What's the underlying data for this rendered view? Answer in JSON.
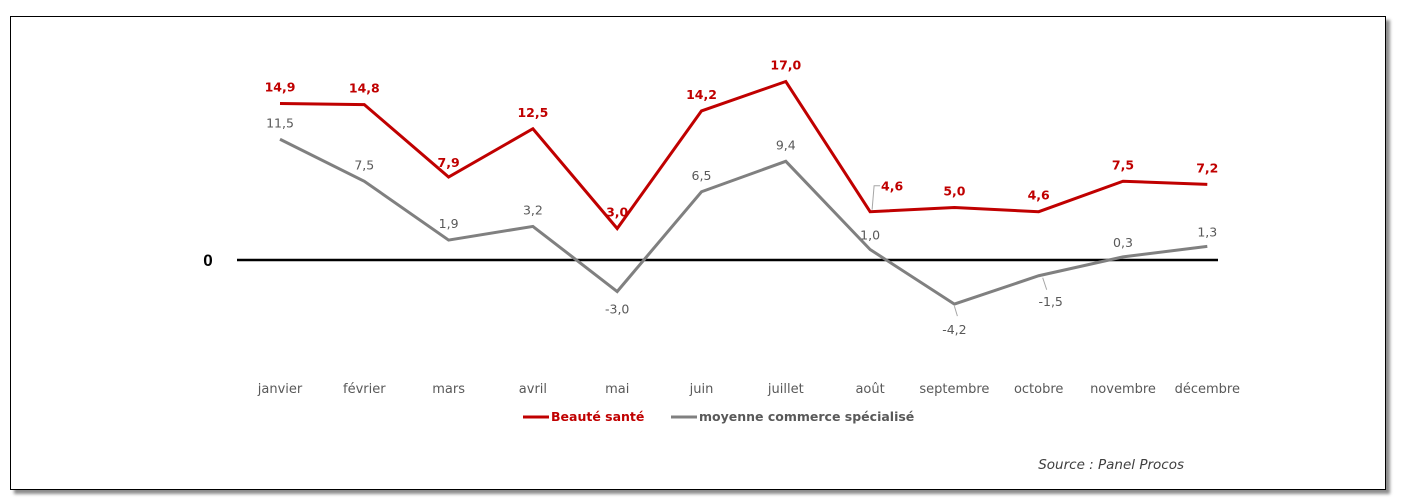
{
  "chart_data": {
    "type": "line",
    "categories": [
      "janvier",
      "février",
      "mars",
      "avril",
      "mai",
      "juin",
      "juillet",
      "août",
      "septembre",
      "octobre",
      "novembre",
      "décembre"
    ],
    "series": [
      {
        "name": "Beauté santé",
        "color": "#c00000",
        "values": [
          14.9,
          14.8,
          7.9,
          12.5,
          3.0,
          14.2,
          17.0,
          4.6,
          5.0,
          4.6,
          7.5,
          7.2
        ],
        "labels": [
          "14,9",
          "14,8",
          "7,9",
          "12,5",
          "3,0",
          "14,2",
          "17,0",
          "4,6",
          "5,0",
          "4,6",
          "7,5",
          "7,2"
        ]
      },
      {
        "name": "moyenne commerce spécialisé",
        "color": "#808080",
        "values": [
          11.5,
          7.5,
          1.9,
          3.2,
          -3.0,
          6.5,
          9.4,
          1.0,
          -4.2,
          -1.5,
          0.3,
          1.3
        ],
        "labels": [
          "11,5",
          "7,5",
          "1,9",
          "3,2",
          "-3,0",
          "6,5",
          "9,4",
          "1,0",
          "-4,2",
          "-1,5",
          "0,3",
          "1,3"
        ]
      }
    ],
    "zero_label": "0",
    "legend_position": "bottom",
    "grid": false,
    "source": "Source : Panel Procos"
  }
}
